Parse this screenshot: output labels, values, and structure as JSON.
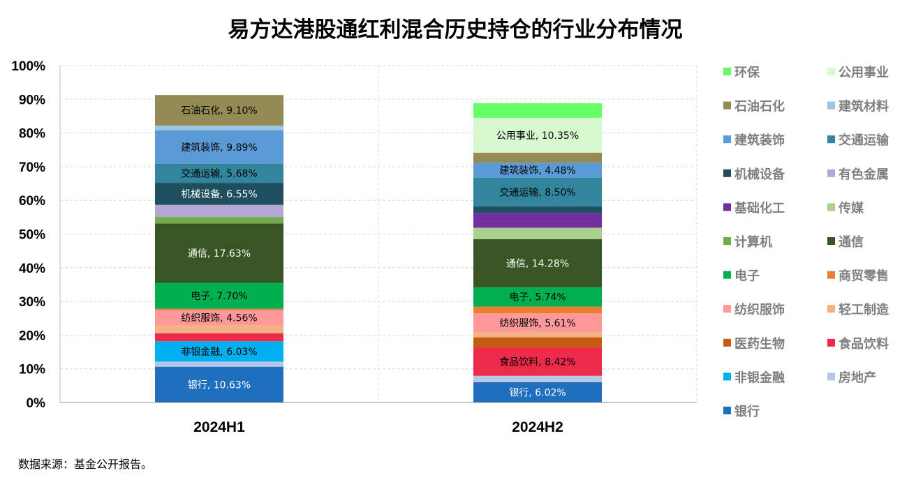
{
  "chart_data": {
    "type": "bar",
    "stacked": true,
    "title": "易方达港股通红利混合历史持仓的行业分布情况",
    "categories": [
      "2024H1",
      "2024H2"
    ],
    "ylim": [
      0,
      100
    ],
    "yticks": [
      "0%",
      "10%",
      "20%",
      "30%",
      "40%",
      "50%",
      "60%",
      "70%",
      "80%",
      "90%",
      "100%"
    ],
    "grid": true,
    "legend_position": "right",
    "series": [
      {
        "name": "银行",
        "color": "#1f6fbf",
        "label_color": "#ffffff",
        "values": [
          10.63,
          6.02
        ]
      },
      {
        "name": "房地产",
        "color": "#b4c7e7",
        "label_color": "#000000",
        "values": [
          1.5,
          1.9
        ]
      },
      {
        "name": "非银金融",
        "color": "#00b0f0",
        "label_color": "#000000",
        "values": [
          6.03,
          0
        ]
      },
      {
        "name": "食品饮料",
        "color": "#ee2a4b",
        "label_color": "#000000",
        "values": [
          2.4,
          8.42
        ]
      },
      {
        "name": "医药生物",
        "color": "#c55a11",
        "label_color": "#ffffff",
        "values": [
          0,
          3.0
        ]
      },
      {
        "name": "轻工制造",
        "color": "#f4b183",
        "label_color": "#000000",
        "values": [
          2.3,
          1.5
        ]
      },
      {
        "name": "纺织服饰",
        "color": "#ff9999",
        "label_color": "#000000",
        "values": [
          4.56,
          5.61
        ]
      },
      {
        "name": "商贸零售",
        "color": "#ed7d31",
        "label_color": "#000000",
        "values": [
          0.4,
          2.0
        ]
      },
      {
        "name": "电子",
        "color": "#00b050",
        "label_color": "#000000",
        "values": [
          7.7,
          5.74
        ]
      },
      {
        "name": "通信",
        "color": "#375623",
        "label_color": "#ffffff",
        "values": [
          17.63,
          14.28
        ]
      },
      {
        "name": "计算机",
        "color": "#70ad47",
        "label_color": "#000000",
        "values": [
          1.9,
          0
        ]
      },
      {
        "name": "传媒",
        "color": "#a9d08e",
        "label_color": "#000000",
        "values": [
          0,
          3.4
        ]
      },
      {
        "name": "基础化工",
        "color": "#7030a0",
        "label_color": "#ffffff",
        "values": [
          0,
          4.4
        ]
      },
      {
        "name": "有色金属",
        "color": "#b4a7d6",
        "label_color": "#000000",
        "values": [
          3.6,
          0
        ]
      },
      {
        "name": "机械设备",
        "color": "#1f4e5f",
        "label_color": "#ffffff",
        "values": [
          6.55,
          1.9
        ]
      },
      {
        "name": "交通运输",
        "color": "#31859c",
        "label_color": "#000000",
        "values": [
          5.68,
          8.5
        ]
      },
      {
        "name": "建筑装饰",
        "color": "#5b9bd5",
        "label_color": "#000000",
        "values": [
          9.89,
          4.48
        ]
      },
      {
        "name": "建筑材料",
        "color": "#9dc3e6",
        "label_color": "#000000",
        "values": [
          1.4,
          0
        ]
      },
      {
        "name": "石油石化",
        "color": "#948a54",
        "label_color": "#000000",
        "values": [
          9.1,
          3.0
        ]
      },
      {
        "name": "公用事业",
        "color": "#d8f8d0",
        "label_color": "#000000",
        "values": [
          0,
          10.35
        ]
      },
      {
        "name": "环保",
        "color": "#66ff66",
        "label_color": "#000000",
        "values": [
          0,
          4.3
        ]
      }
    ],
    "data_labels": [
      [
        "银行, 10.63%",
        "银行, 6.02%"
      ],
      [
        "",
        ""
      ],
      [
        "非银金融, 6.03%",
        ""
      ],
      [
        "",
        "食品饮料, 8.42%"
      ],
      [
        "",
        ""
      ],
      [
        "",
        ""
      ],
      [
        "纺织服饰, 4.56%",
        "纺织服饰, 5.61%"
      ],
      [
        "",
        ""
      ],
      [
        "电子, 7.70%",
        "电子, 5.74%"
      ],
      [
        "通信, 17.63%",
        "通信, 14.28%"
      ],
      [
        "",
        ""
      ],
      [
        "",
        ""
      ],
      [
        "",
        ""
      ],
      [
        "",
        ""
      ],
      [
        "机械设备, 6.55%",
        ""
      ],
      [
        "交通运输, 5.68%",
        "交通运输, 8.50%"
      ],
      [
        "建筑装饰, 9.89%",
        "建筑装饰, 4.48%"
      ],
      [
        "",
        ""
      ],
      [
        "石油石化, 9.10%",
        ""
      ],
      [
        "",
        "公用事业, 10.35%"
      ],
      [
        "",
        ""
      ]
    ],
    "legend_order": [
      "环保",
      "公用事业",
      "石油石化",
      "建筑材料",
      "建筑装饰",
      "交通运输",
      "机械设备",
      "有色金属",
      "基础化工",
      "传媒",
      "计算机",
      "通信",
      "电子",
      "商贸零售",
      "纺织服饰",
      "轻工制造",
      "医药生物",
      "食品饮料",
      "非银金融",
      "房地产",
      "银行"
    ]
  },
  "source_note": "数据来源：基金公开报告。"
}
